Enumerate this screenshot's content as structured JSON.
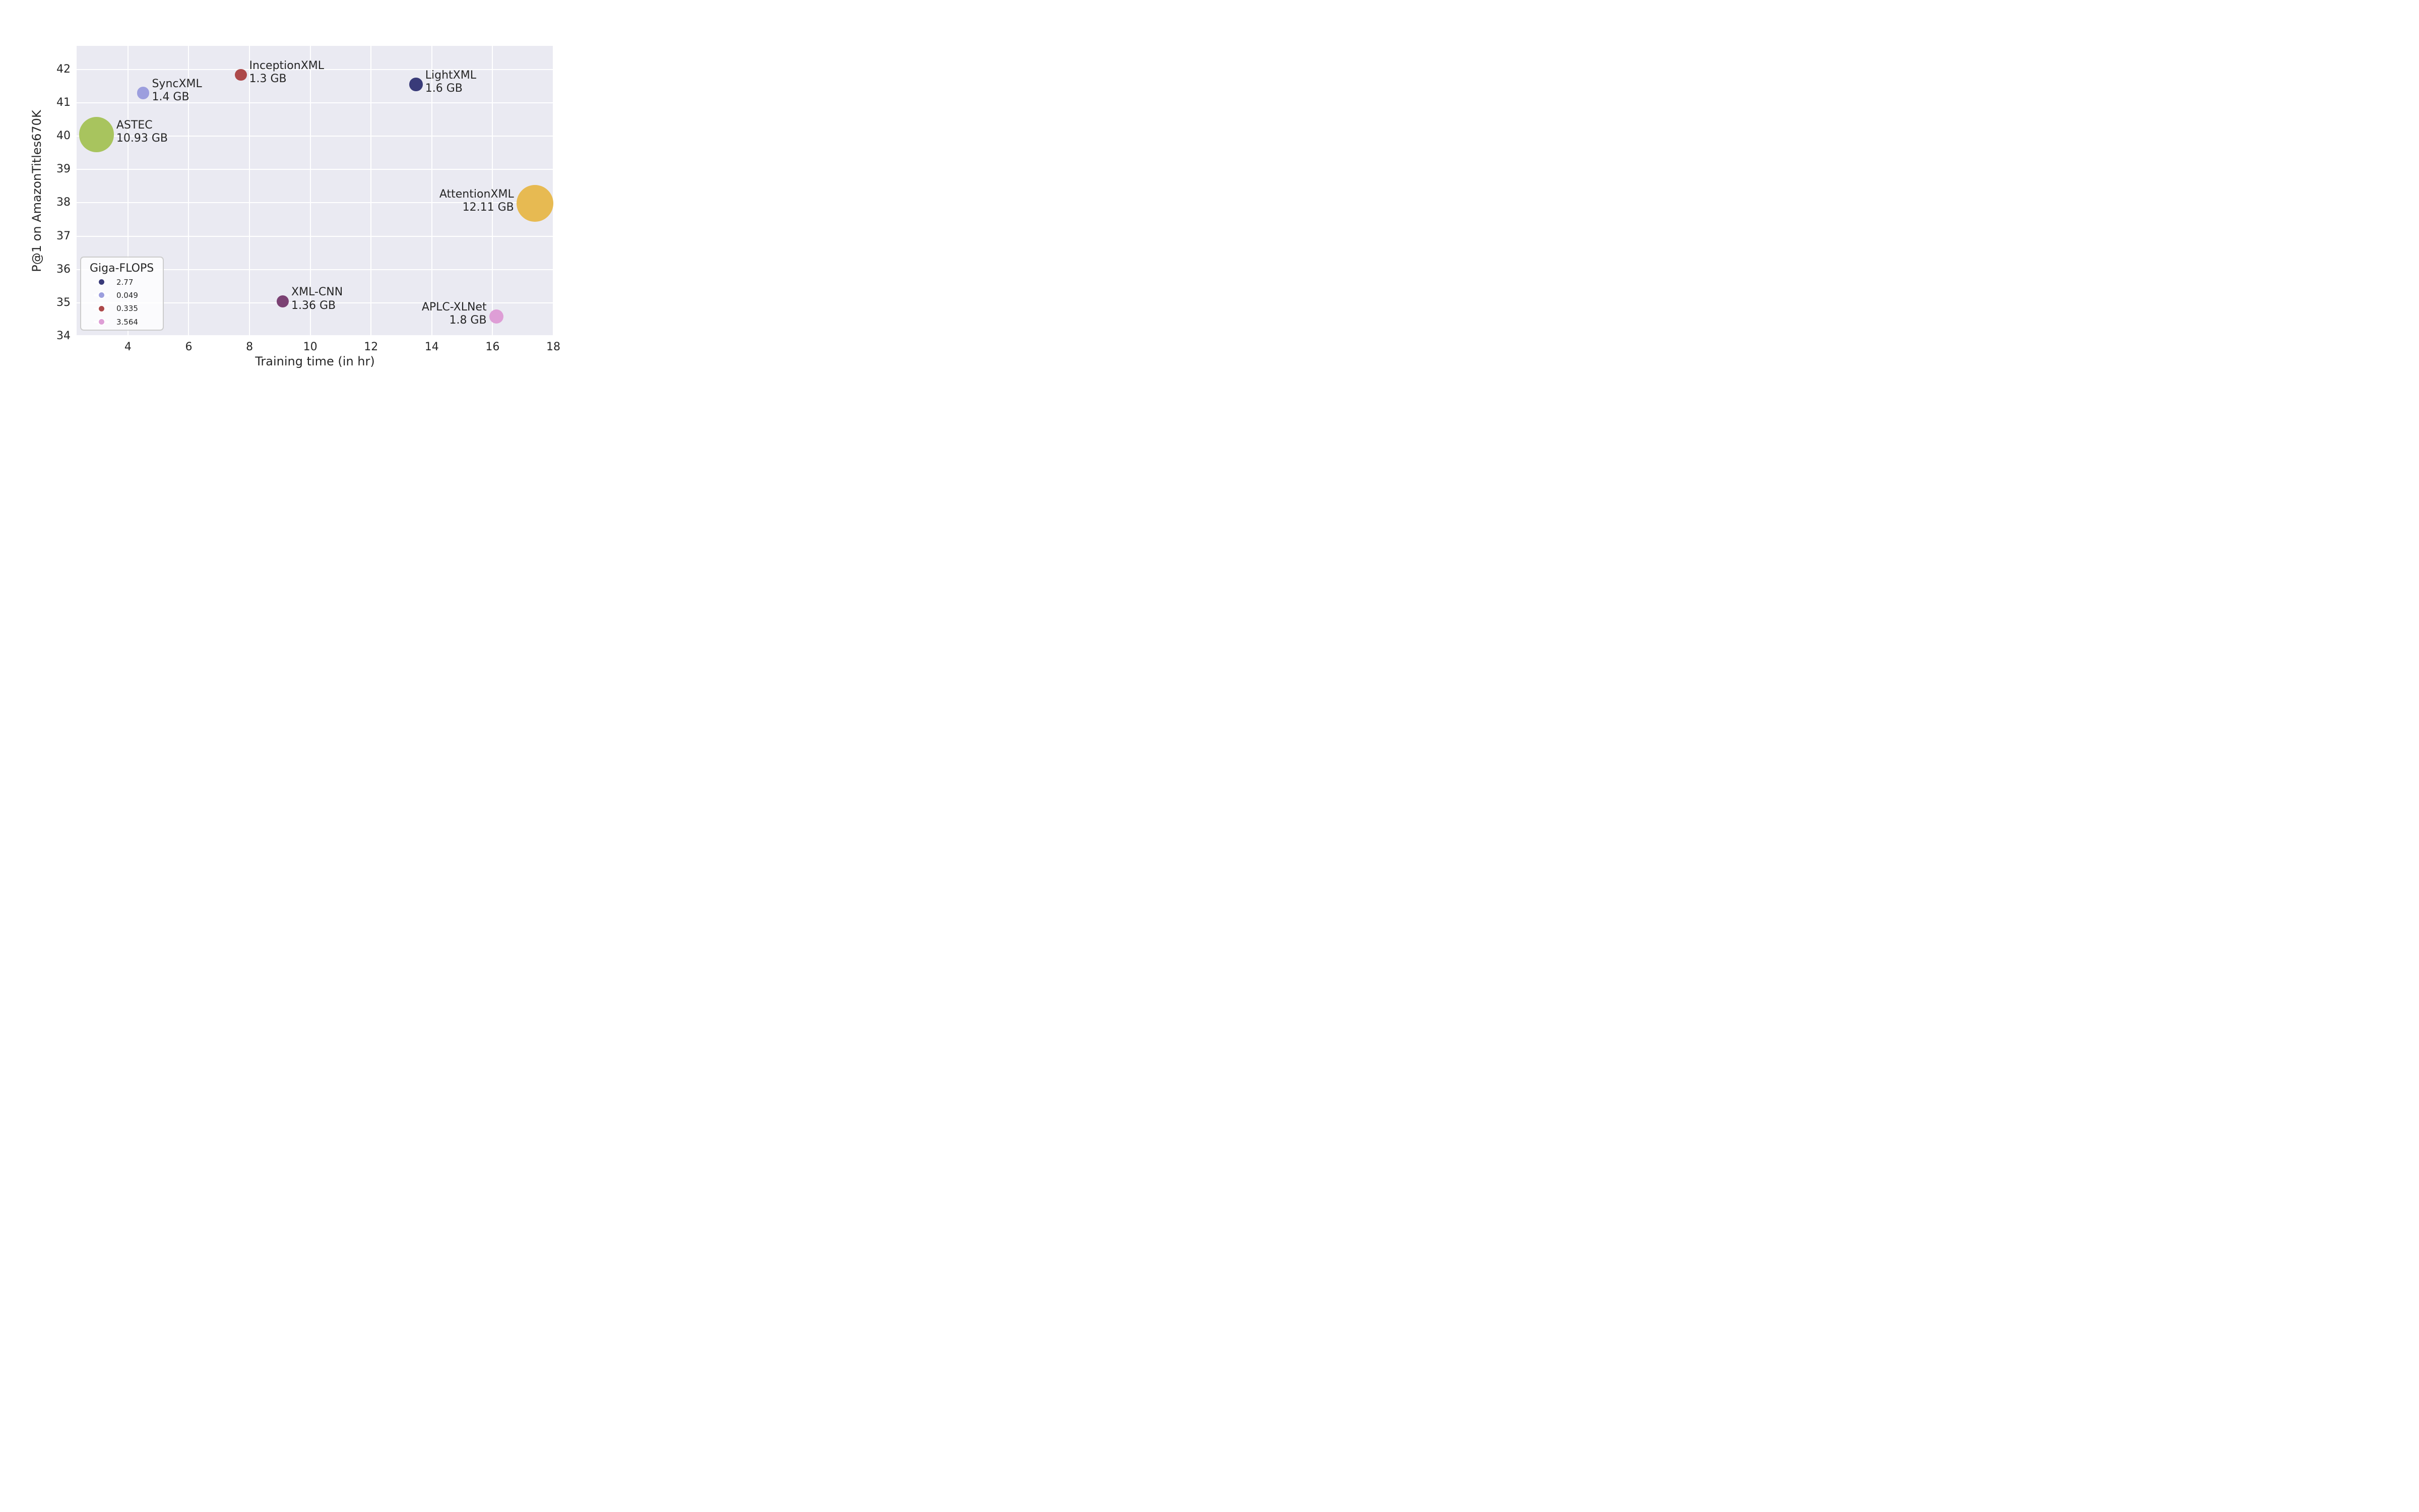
{
  "chart_data": {
    "type": "scatter",
    "title": "",
    "xlabel": "Training time (in hr)",
    "ylabel": "P@1 on AmazonTitles670K",
    "xlim": [
      2.31,
      18.0
    ],
    "ylim": [
      34.0,
      42.71
    ],
    "xticks": [
      4,
      6,
      8,
      10,
      12,
      14,
      16,
      18
    ],
    "yticks": [
      34,
      35,
      36,
      37,
      38,
      39,
      40,
      41,
      42
    ],
    "grid": true,
    "plot_background": "#eaeaf2",
    "gridline_color": "#ffffff",
    "text_color": "#262626",
    "size_encoding": "bubble area ~ model memory (GB)",
    "legend": {
      "title": "Giga-FLOPS",
      "position": "lower left",
      "entries": [
        {
          "label": "2.77",
          "color": "#393b79"
        },
        {
          "label": "0.049",
          "color": "#9c9ede"
        },
        {
          "label": "0.335",
          "color": "#ad494a"
        },
        {
          "label": "3.564",
          "color": "#de9ed6"
        }
      ]
    },
    "points": [
      {
        "name": "SyncXML",
        "x": 4.5,
        "y": 41.29,
        "memory_gb": 1.4,
        "sublabel": "1.4 GB",
        "color": "#9c9ede",
        "giga_flops": 0.049,
        "label_side": "right"
      },
      {
        "name": "InceptionXML",
        "x": 7.71,
        "y": 41.84,
        "memory_gb": 1.3,
        "sublabel": "1.3 GB",
        "color": "#ad494a",
        "giga_flops": 0.335,
        "label_side": "right"
      },
      {
        "name": "LightXML",
        "x": 13.48,
        "y": 41.55,
        "memory_gb": 1.6,
        "sublabel": "1.6 GB",
        "color": "#393b79",
        "giga_flops": 2.77,
        "label_side": "right"
      },
      {
        "name": "ASTEC",
        "x": 2.96,
        "y": 40.05,
        "memory_gb": 10.93,
        "sublabel": "10.93 GB",
        "color": "#a8c45e",
        "label_side": "right"
      },
      {
        "name": "AttentionXML",
        "x": 17.39,
        "y": 37.98,
        "memory_gb": 12.11,
        "sublabel": "12.11 GB",
        "color": "#e7ba52",
        "label_side": "left"
      },
      {
        "name": "XML-CNN",
        "x": 9.09,
        "y": 35.04,
        "memory_gb": 1.36,
        "sublabel": "1.36 GB",
        "color": "#7b4173",
        "label_side": "right"
      },
      {
        "name": "APLC-XLNet",
        "x": 16.12,
        "y": 34.59,
        "memory_gb": 1.8,
        "sublabel": "1.8 GB",
        "color": "#de9ed6",
        "giga_flops": 3.564,
        "label_side": "left"
      }
    ]
  }
}
